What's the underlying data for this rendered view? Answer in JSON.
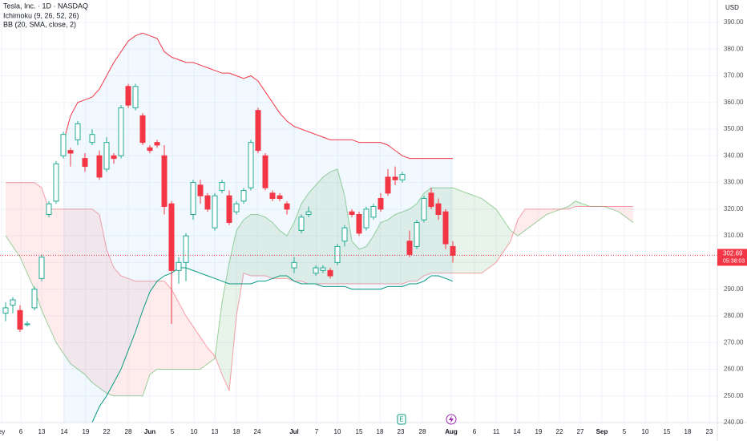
{
  "chart_data": {
    "type": "candlestick",
    "title": "Tesla, Inc. · 1D · NASDAQ",
    "indicators": [
      "Ichimoku (9, 26, 52, 26)",
      "BB (20, SMA, close, 2)"
    ],
    "currency": "USD",
    "ylim": [
      240,
      398.4
    ],
    "yticks": [
      {
        "value": 240,
        "label": "240.00"
      },
      {
        "value": 250,
        "label": "250.00"
      },
      {
        "value": 260,
        "label": "260.00"
      },
      {
        "value": 270,
        "label": "270.00"
      },
      {
        "value": 280,
        "label": "280.00"
      },
      {
        "value": 290,
        "label": "290.00"
      },
      {
        "value": 300,
        "label": "300.00"
      },
      {
        "value": 310,
        "label": "310.00"
      },
      {
        "value": 320,
        "label": "320.00"
      },
      {
        "value": 330,
        "label": "330.00"
      },
      {
        "value": 340,
        "label": "340.00"
      },
      {
        "value": 350,
        "label": "350.00"
      },
      {
        "value": 360,
        "label": "360.00"
      },
      {
        "value": 370,
        "label": "370.00"
      },
      {
        "value": 380,
        "label": "380.00"
      },
      {
        "value": 390,
        "label": "390.00"
      }
    ],
    "x_labels": [
      "ey",
      "6",
      "13",
      "14",
      "19",
      "22",
      "28",
      "Jun",
      "5",
      "10",
      "13",
      "18",
      "24",
      "Jul",
      "7",
      "10",
      "15",
      "18",
      "23",
      "28",
      "Aug",
      "6",
      "11",
      "14",
      "19",
      "22",
      "27",
      "Sep",
      "5",
      "10",
      "15",
      "18",
      "23"
    ],
    "grid": true,
    "up_color": "#22ab94",
    "down_color": "#f23645",
    "candles": [
      [
        281,
        285,
        278,
        283
      ],
      [
        284,
        287,
        281,
        286
      ],
      [
        282,
        284,
        274,
        275
      ],
      [
        277,
        278,
        276,
        277
      ],
      [
        283,
        291,
        282,
        290
      ],
      [
        294,
        303,
        293,
        302
      ],
      [
        318,
        323,
        317,
        322
      ],
      [
        323,
        338,
        322,
        337
      ],
      [
        340,
        349,
        339,
        348
      ],
      [
        342,
        343,
        336,
        341
      ],
      [
        346,
        353,
        344,
        352
      ],
      [
        339,
        341,
        334,
        336
      ],
      [
        345,
        350,
        344,
        348
      ],
      [
        340,
        342,
        331,
        332
      ],
      [
        335,
        347,
        334,
        345
      ],
      [
        340,
        341,
        337,
        339
      ],
      [
        340,
        359,
        339,
        358
      ],
      [
        366,
        367,
        358,
        359
      ],
      [
        358,
        367,
        357,
        366
      ],
      [
        355,
        356,
        344,
        345
      ],
      [
        343,
        344,
        341,
        342
      ],
      [
        345,
        346,
        343,
        344
      ],
      [
        340,
        344,
        318,
        321
      ],
      [
        322,
        323,
        277,
        297
      ],
      [
        297,
        302,
        292,
        300
      ],
      [
        300,
        311,
        293,
        310
      ],
      [
        318,
        331,
        316,
        330
      ],
      [
        329,
        331,
        322,
        325
      ],
      [
        325,
        326,
        319,
        320
      ],
      [
        313,
        326,
        312,
        325
      ],
      [
        327,
        331,
        326,
        330
      ],
      [
        325,
        327,
        314,
        315
      ],
      [
        319,
        323,
        318,
        322
      ],
      [
        323,
        328,
        322,
        327
      ],
      [
        328,
        346,
        327,
        345
      ],
      [
        357,
        358,
        341,
        342
      ],
      [
        340,
        341,
        327,
        328
      ],
      [
        326,
        327,
        323,
        324
      ],
      [
        325,
        326,
        323,
        324
      ],
      [
        322,
        323,
        318,
        320
      ],
      [
        298,
        302,
        296,
        300
      ],
      [
        312,
        318,
        311,
        317
      ],
      [
        318,
        321,
        317,
        319
      ],
      [
        296,
        299,
        295,
        298
      ],
      [
        297,
        299,
        296,
        298
      ],
      [
        297,
        298,
        294,
        295
      ],
      [
        300,
        307,
        299,
        306
      ],
      [
        308,
        314,
        306,
        313
      ],
      [
        319,
        320,
        317,
        318
      ],
      [
        318,
        319,
        310,
        311
      ],
      [
        313,
        321,
        312,
        320
      ],
      [
        317,
        322,
        316,
        321
      ],
      [
        324,
        326,
        319,
        320
      ],
      [
        332,
        335,
        325,
        326
      ],
      [
        332,
        336,
        329,
        331
      ],
      [
        331,
        334,
        330,
        333
      ],
      [
        308,
        312,
        302,
        303
      ],
      [
        306,
        316,
        305,
        315
      ],
      [
        316,
        325,
        315,
        324
      ],
      [
        326,
        328,
        320,
        321
      ],
      [
        322,
        324,
        316,
        318
      ],
      [
        319,
        320,
        305,
        307
      ],
      [
        306,
        308,
        300,
        302.69
      ]
    ],
    "bb_upper": [
      null,
      null,
      null,
      null,
      null,
      null,
      null,
      null,
      345,
      355,
      360,
      361,
      362,
      365,
      370,
      375,
      379,
      383,
      385,
      386,
      385,
      384,
      379,
      377,
      376,
      375,
      375,
      374,
      373,
      372,
      371,
      371,
      370,
      369,
      370,
      368,
      364,
      360,
      356,
      353,
      351,
      350,
      349,
      348,
      347,
      346,
      346,
      346,
      346,
      345,
      345,
      345,
      345,
      344,
      342,
      340,
      339,
      339,
      339,
      339,
      339,
      339,
      339
    ],
    "bb_lower": [
      null,
      null,
      null,
      null,
      null,
      null,
      null,
      null,
      null,
      null,
      null,
      null,
      240,
      246,
      250,
      255,
      260,
      267,
      274,
      282,
      289,
      293,
      295,
      296,
      298,
      298,
      297,
      296,
      295,
      294,
      293,
      292,
      292,
      292,
      292,
      293,
      293,
      294,
      295,
      295,
      293,
      292,
      292,
      292,
      291,
      291,
      291,
      291,
      290,
      290,
      290,
      290,
      290,
      291,
      291,
      291,
      292,
      292,
      293,
      295,
      295,
      294,
      293
    ],
    "bb_upper_color": "#f23645",
    "bb_lower_color": "#089981",
    "span_a": [
      310,
      306,
      302,
      296,
      290,
      282,
      276,
      270,
      266,
      262,
      260,
      258,
      255,
      253,
      251,
      250,
      250,
      250,
      250,
      250,
      258,
      260,
      260,
      260,
      260,
      260,
      260,
      260,
      262,
      264,
      285,
      300,
      312,
      316,
      318,
      318,
      317,
      315,
      312,
      310,
      315,
      322,
      326,
      329,
      332,
      334,
      335,
      325,
      308,
      305,
      306,
      310,
      315,
      316,
      318,
      319,
      320,
      322,
      326,
      328,
      328,
      328,
      328,
      327,
      326,
      325,
      324,
      322,
      320,
      316,
      312,
      310,
      312,
      314,
      316,
      318,
      319,
      320,
      321,
      323,
      322,
      321,
      321,
      321,
      320,
      319,
      317,
      315
    ],
    "span_b": [
      330,
      330,
      330,
      330,
      330,
      328,
      320,
      320,
      320,
      320,
      320,
      320,
      320,
      318,
      305,
      298,
      295,
      294,
      293,
      293,
      293,
      293,
      293,
      290,
      285,
      280,
      276,
      272,
      268,
      265,
      258,
      252,
      280,
      296,
      295,
      295,
      295,
      294,
      294,
      294,
      293,
      293,
      292,
      292,
      292,
      292,
      292,
      292,
      292,
      292,
      292,
      292,
      292,
      292,
      292,
      292,
      293,
      293,
      295,
      296,
      296,
      296,
      296,
      296,
      296,
      296,
      296,
      298,
      300,
      304,
      308,
      316,
      320,
      320,
      320,
      320,
      320,
      320,
      320,
      321,
      321,
      321,
      321,
      321,
      321,
      321,
      321,
      321
    ],
    "last_price": 302.69,
    "countdown": "05:38:03",
    "event_markers": [
      "E"
    ]
  }
}
